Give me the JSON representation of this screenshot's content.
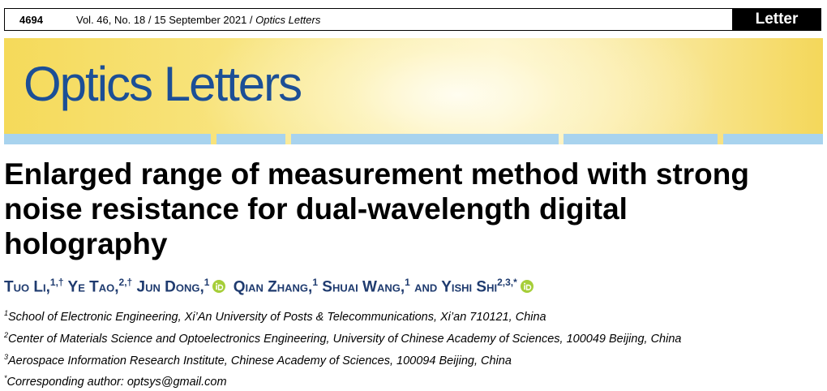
{
  "header": {
    "page": "4694",
    "citation": "Vol. 46, No. 18 / 15 September 2021 / ",
    "journal": "Optics Letters",
    "label": "Letter"
  },
  "banner": {
    "title": "Optics Letters"
  },
  "article": {
    "title": "Enlarged range of measurement method with strong noise resistance for dual-wavelength digital holography",
    "authors": [
      {
        "name": "Tuo Li,",
        "sup": "1,†"
      },
      {
        "name": "Ye Tao,",
        "sup": "2,†"
      },
      {
        "name": "Jun Dong,",
        "sup": "1"
      },
      {
        "name": "Qian Zhang,",
        "sup": "1"
      },
      {
        "name": "Shuai Wang,",
        "sup": "1"
      },
      {
        "name": "and",
        "sup": null
      },
      {
        "name": "Yishi Shi",
        "sup": "2,3,*"
      }
    ],
    "affiliations": [
      {
        "sup": "1",
        "text": "School of Electronic Engineering, Xi’An University of Posts & Telecommunications, Xi’an 710121, China"
      },
      {
        "sup": "2",
        "text": "Center of Materials Science and Optoelectronics Engineering, University of Chinese Academy of Sciences, 100049 Beijing, China"
      },
      {
        "sup": "3",
        "text": "Aerospace Information Research Institute, Chinese Academy of Sciences, 100094 Beijing, China"
      },
      {
        "sup": "*",
        "text": "Corresponding author: optsys@gmail.com"
      }
    ]
  }
}
